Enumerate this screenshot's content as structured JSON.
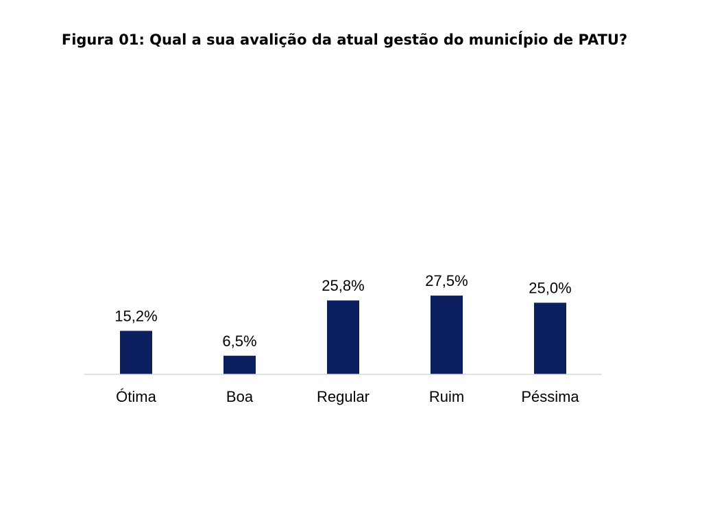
{
  "chart_data": {
    "type": "bar",
    "title": "Figura 01: Qual a sua avalição da atual gestão do municÍpio de PATU?",
    "categories": [
      "Ótima",
      "Boa",
      "Regular",
      "Ruim",
      "Péssima"
    ],
    "values": [
      15.2,
      6.5,
      25.8,
      27.5,
      25.0
    ],
    "value_labels": [
      "15,2%",
      "6,5%",
      "25,8%",
      "27,5%",
      "25,0%"
    ],
    "xlabel": "",
    "ylabel": "",
    "ylim": [
      0,
      100
    ],
    "grid": false,
    "legend": "none",
    "bar_color": "#0c2060",
    "axis_color": "#d9d9d9"
  }
}
